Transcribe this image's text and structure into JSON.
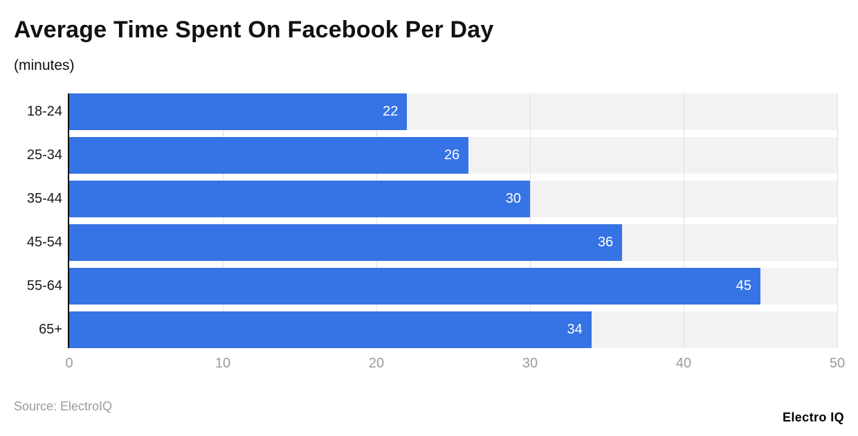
{
  "chart_data": {
    "type": "bar",
    "orientation": "horizontal",
    "title": "Average Time Spent On Facebook Per Day",
    "subtitle": "(minutes)",
    "categories": [
      "18-24",
      "25-34",
      "35-44",
      "45-54",
      "55-64",
      "65+"
    ],
    "values": [
      22,
      26,
      30,
      36,
      45,
      34
    ],
    "xlim": [
      0,
      50
    ],
    "x_ticks": [
      0,
      10,
      20,
      30,
      40,
      50
    ],
    "grid": true,
    "legend": "none",
    "value_labels": "inside-end",
    "colors": {
      "bar": "#3673e4",
      "track": "#f2f2f2",
      "gridline": "#e0e0e0",
      "axis": "#000000",
      "value_label": "#ffffff",
      "tick_label": "#9b9b9b",
      "title": "#111111"
    }
  },
  "footer": {
    "source": "Source: ElectroIQ",
    "logo": "Electro IQ"
  }
}
